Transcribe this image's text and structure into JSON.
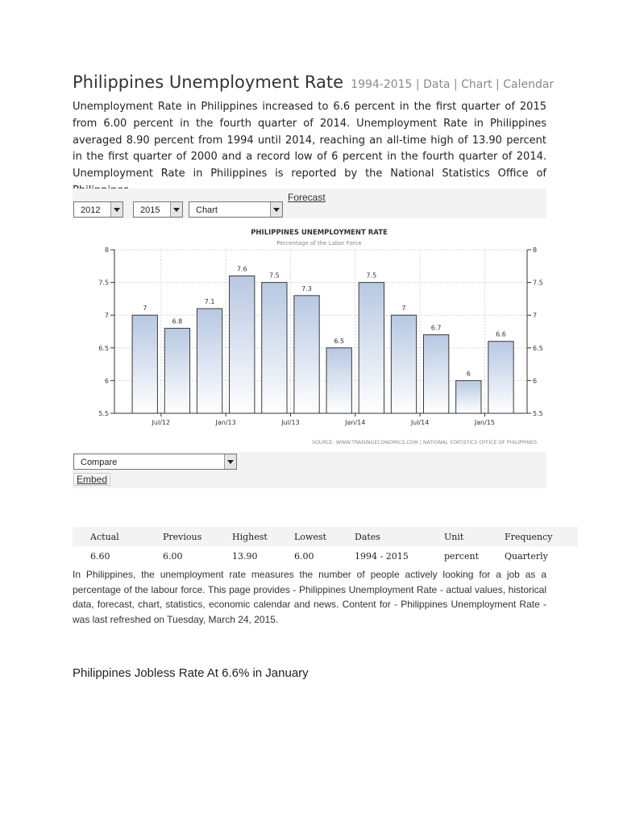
{
  "header": {
    "title": "Philippines Unemployment Rate",
    "links": "1994-2015 | Data | Chart | Calendar"
  },
  "intro": "Unemployment Rate in Philippines increased to 6.6 percent in the first quarter of 2015 from 6.00 percent in the fourth quarter of 2014. Unemployment Rate in Philippines averaged 8.90 percent from 1994 until 2014, reaching an all-time high of 13.90 percent in the first quarter of 2000 and a record low of 6 percent in the fourth quarter of 2014. Unemployment Rate in Philippines is reported by the National Statistics Office of Philippines.",
  "toolbar": {
    "forecast_label": "Forecast",
    "start_year": "2012",
    "end_year": "2015",
    "view": "Chart"
  },
  "chart_data": {
    "type": "bar",
    "title": "PHILIPPINES UNEMPLOYMENT RATE",
    "subtitle": "Percentage of the Labor Force",
    "source": "SOURCE: WWW.TRADINGECONOMICS.COM  |  NATIONAL STATISTICS OFFICE OF PHILIPPINES",
    "values": [
      7,
      6.8,
      7.1,
      7.6,
      7.5,
      7.3,
      6.5,
      7.5,
      7,
      6.7,
      6,
      6.6
    ],
    "value_labels": [
      "7",
      "6.8",
      "7.1",
      "7.6",
      "7.5",
      "7.3",
      "6.5",
      "7.5",
      "7",
      "6.7",
      "6",
      "6.6"
    ],
    "x_tick_labels": [
      "Jul/12",
      "Jan/13",
      "Jul/13",
      "Jan/14",
      "Jul/14",
      "Jan/15"
    ],
    "ylim": [
      5.5,
      8
    ],
    "y_ticks": [
      "5.5",
      "6",
      "6.5",
      "7",
      "7.5",
      "8"
    ],
    "grid": true,
    "colors": {
      "bar_top": "#b7c8e2",
      "bar_bottom": "#ffffff",
      "bar_stroke": "#3a3a3a"
    }
  },
  "compare": {
    "placeholder": "Compare",
    "embed_label": "Embed"
  },
  "stats": {
    "headers": [
      "Actual",
      "Previous",
      "Highest",
      "Lowest",
      "Dates",
      "Unit",
      "Frequency"
    ],
    "row": [
      "6.60",
      "6.00",
      "13.90",
      "6.00",
      "1994 - 2015",
      "percent",
      "Quarterly"
    ]
  },
  "description": "In Philippines, the unemployment rate measures the number of people actively looking for a job as a percentage of the labour force. This page provides - Philippines Unemployment Rate - actual values, historical data, forecast, chart, statistics, economic calendar and news. Content for - Philippines Unemployment Rate - was last refreshed on Tuesday, March 24, 2015.",
  "news_headline": "Philippines Jobless Rate At 6.6% in January"
}
